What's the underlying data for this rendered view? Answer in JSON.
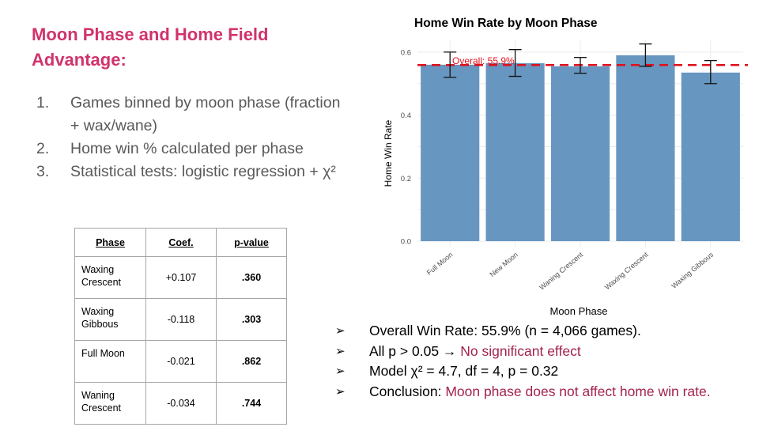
{
  "slide": {
    "title": "Moon Phase and Home Field Advantage:",
    "steps": [
      {
        "num": "1.",
        "text": "Games binned by moon phase (fraction + wax/wane)"
      },
      {
        "num": "2.",
        "text": "Home win % calculated per phase"
      },
      {
        "num": "3.",
        "text": "Statistical tests: logistic regression + χ²"
      }
    ],
    "colors": {
      "title": "#d0336c",
      "highlight": "#a3224f",
      "bar": "#6796c0",
      "overall_line": "#e0101c"
    }
  },
  "table": {
    "headers": [
      "Phase",
      "Coef.",
      "p-value"
    ],
    "rows": [
      {
        "phase": "Waxing Crescent",
        "coef": "+0.107",
        "p": ".360"
      },
      {
        "phase": "Waxing Gibbous",
        "coef": "-0.118",
        "p": ".303"
      },
      {
        "phase": "Full Moon",
        "coef": "-0.021",
        "p": ".862"
      },
      {
        "phase": "Waning Crescent",
        "coef": "-0.034",
        "p": ".744"
      }
    ]
  },
  "bullets": [
    {
      "marker": "➢",
      "text": "Overall Win Rate: 55.9% (n = 4,066 games).",
      "highlight": ""
    },
    {
      "marker": "➢",
      "text": "All p > 0.05 → ",
      "highlight": "No significant effect"
    },
    {
      "marker": "➢",
      "text": "Model χ² = 4.7, df = 4, p = 0.32",
      "highlight": ""
    },
    {
      "marker": "➢",
      "text": "Conclusion: ",
      "highlight": "Moon phase does not affect home win rate."
    }
  ],
  "chart_data": {
    "type": "bar",
    "title": "Home Win Rate by Moon Phase",
    "xlabel": "Moon Phase",
    "ylabel": "Home Win Rate",
    "categories": [
      "Full Moon",
      "New Moon",
      "Waning Crescent",
      "Waxing Crescent",
      "Waxing Gibbous"
    ],
    "values": [
      0.56,
      0.565,
      0.555,
      0.59,
      0.535
    ],
    "error_low": [
      0.52,
      0.523,
      0.533,
      0.555,
      0.5
    ],
    "error_high": [
      0.6,
      0.608,
      0.583,
      0.626,
      0.573
    ],
    "yticks": [
      "0.0",
      "0.2",
      "0.4",
      "0.6"
    ],
    "ylim": [
      0,
      0.64
    ],
    "reference_line": {
      "value": 0.559,
      "label": "Overall: 55.9%",
      "style": "dashed",
      "color": "#e0101c"
    },
    "grid": true,
    "legend": "none"
  }
}
